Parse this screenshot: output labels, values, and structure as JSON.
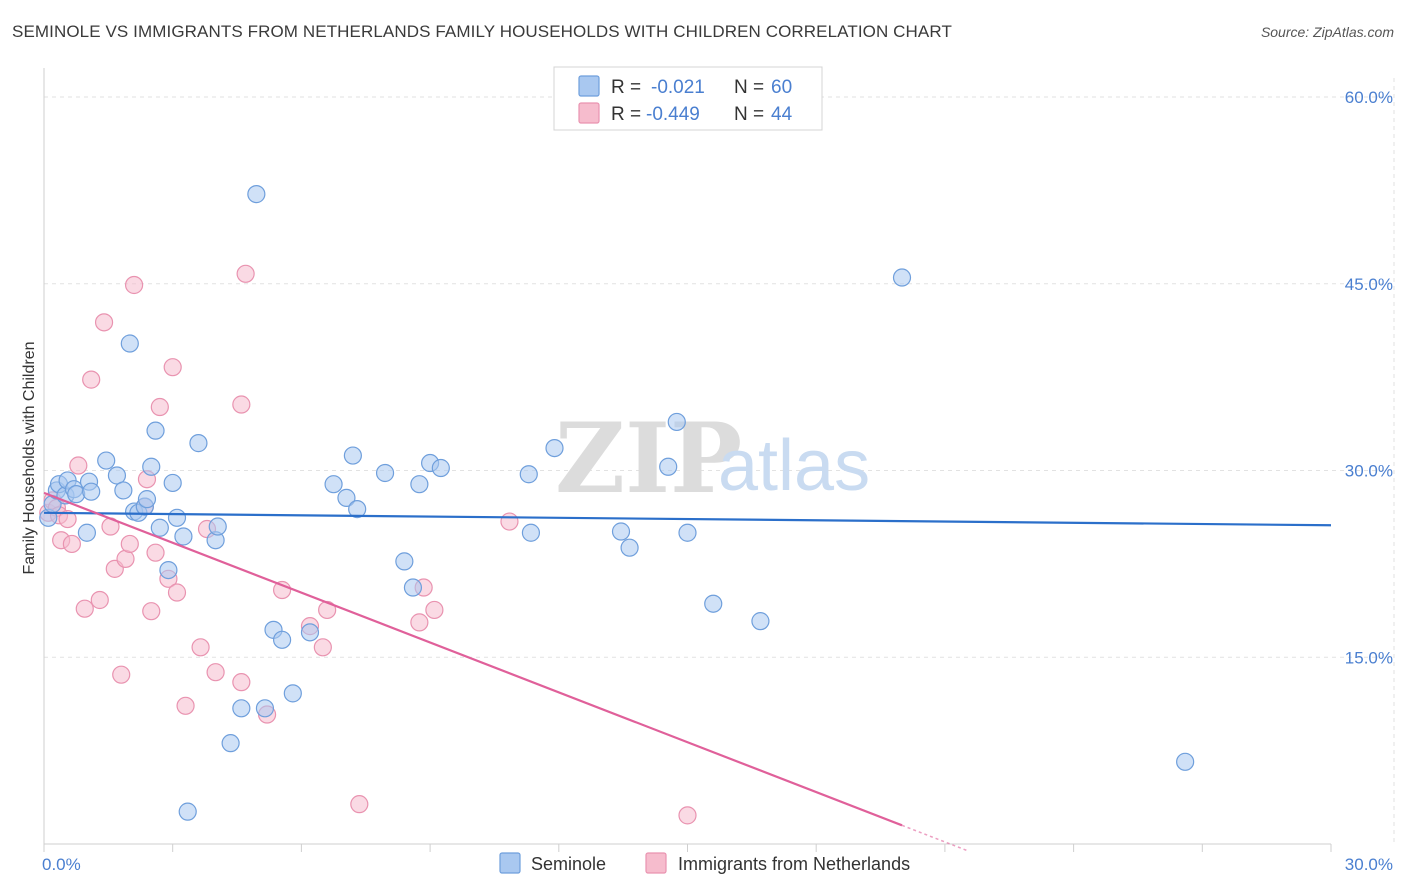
{
  "header": {
    "title": "SEMINOLE VS IMMIGRANTS FROM NETHERLANDS FAMILY HOUSEHOLDS WITH CHILDREN CORRELATION CHART",
    "source": "Source: ZipAtlas.com"
  },
  "watermark": {
    "zip": "ZIP",
    "atlas": "atlas"
  },
  "legend": {
    "r_label": "R =",
    "n_label": "N =",
    "rows": [
      {
        "name": "Seminole",
        "r": "-0.021",
        "n": "60"
      },
      {
        "name": "Immigrants from Netherlands",
        "r": "-0.449",
        "n": "44"
      }
    ]
  },
  "colors": {
    "seminole_fill": "#a9c8f0",
    "seminole_stroke": "#6f9fdc",
    "seminole_line": "#2b6fca",
    "neth_fill": "#f6bccd",
    "neth_stroke": "#e993b0",
    "neth_line": "#e0609a",
    "tick_text": "#4a7fd0"
  },
  "chart_data": {
    "type": "scatter",
    "title": "SEMINOLE VS IMMIGRANTS FROM NETHERLANDS FAMILY HOUSEHOLDS WITH CHILDREN CORRELATION CHART",
    "xlabel": "",
    "ylabel": "Family Households with Children",
    "xlim": [
      0,
      30
    ],
    "ylim": [
      0,
      60
    ],
    "x_tick_labels": [
      "0.0%",
      "30.0%"
    ],
    "y_ticks": [
      15,
      30,
      45,
      60
    ],
    "y_tick_labels": [
      "15.0%",
      "30.0%",
      "45.0%",
      "60.0%"
    ],
    "grid": true,
    "legend_position": "top-center",
    "series": [
      {
        "name": "Seminole",
        "r": -0.021,
        "n": 60,
        "trend": {
          "x0": 0,
          "y0": 26.6,
          "x1": 30,
          "y1": 25.6
        },
        "points": [
          [
            0.1,
            26.2
          ],
          [
            0.2,
            27.3
          ],
          [
            0.3,
            28.4
          ],
          [
            0.35,
            28.9
          ],
          [
            0.5,
            28.0
          ],
          [
            0.55,
            29.2
          ],
          [
            0.7,
            28.5
          ],
          [
            0.75,
            28.1
          ],
          [
            1.0,
            25.0
          ],
          [
            1.05,
            29.1
          ],
          [
            1.1,
            28.3
          ],
          [
            1.45,
            30.8
          ],
          [
            1.7,
            29.6
          ],
          [
            1.85,
            28.4
          ],
          [
            2.0,
            40.2
          ],
          [
            2.1,
            26.7
          ],
          [
            2.2,
            26.6
          ],
          [
            2.35,
            27.1
          ],
          [
            2.4,
            27.7
          ],
          [
            2.5,
            30.3
          ],
          [
            2.6,
            33.2
          ],
          [
            2.7,
            25.4
          ],
          [
            2.9,
            22.0
          ],
          [
            3.0,
            29.0
          ],
          [
            3.1,
            26.2
          ],
          [
            3.25,
            24.7
          ],
          [
            3.6,
            32.2
          ],
          [
            4.0,
            24.4
          ],
          [
            4.05,
            25.5
          ],
          [
            4.35,
            8.1
          ],
          [
            4.6,
            10.9
          ],
          [
            4.95,
            52.2
          ],
          [
            5.15,
            10.9
          ],
          [
            5.35,
            17.2
          ],
          [
            5.55,
            16.4
          ],
          [
            5.8,
            12.1
          ],
          [
            6.2,
            17.0
          ],
          [
            6.75,
            28.9
          ],
          [
            7.05,
            27.8
          ],
          [
            7.2,
            31.2
          ],
          [
            7.3,
            26.9
          ],
          [
            7.95,
            29.8
          ],
          [
            8.4,
            22.7
          ],
          [
            8.6,
            20.6
          ],
          [
            8.75,
            28.9
          ],
          [
            9.0,
            30.6
          ],
          [
            9.25,
            30.2
          ],
          [
            11.3,
            29.7
          ],
          [
            11.35,
            25.0
          ],
          [
            11.9,
            31.8
          ],
          [
            13.45,
            25.1
          ],
          [
            13.65,
            23.8
          ],
          [
            14.55,
            30.3
          ],
          [
            14.75,
            33.9
          ],
          [
            15.0,
            25.0
          ],
          [
            15.6,
            19.3
          ],
          [
            16.7,
            17.9
          ],
          [
            20.0,
            45.5
          ],
          [
            26.6,
            6.6
          ],
          [
            3.35,
            2.6
          ]
        ]
      },
      {
        "name": "Immigrants from Netherlands",
        "r": -0.449,
        "n": 44,
        "trend": {
          "x0": 0,
          "y0": 28.2,
          "x1": 20,
          "y1": 1.5,
          "dash_to_x": 21.5
        },
        "points": [
          [
            0.1,
            26.6
          ],
          [
            0.2,
            27.6
          ],
          [
            0.3,
            27.0
          ],
          [
            0.35,
            26.4
          ],
          [
            0.4,
            24.4
          ],
          [
            0.55,
            26.1
          ],
          [
            0.65,
            24.1
          ],
          [
            0.8,
            30.4
          ],
          [
            0.95,
            18.9
          ],
          [
            1.1,
            37.3
          ],
          [
            1.3,
            19.6
          ],
          [
            1.4,
            41.9
          ],
          [
            1.55,
            25.5
          ],
          [
            1.65,
            22.1
          ],
          [
            1.8,
            13.6
          ],
          [
            1.9,
            22.9
          ],
          [
            2.0,
            24.1
          ],
          [
            2.1,
            44.9
          ],
          [
            2.35,
            27.1
          ],
          [
            2.4,
            29.3
          ],
          [
            2.5,
            18.7
          ],
          [
            2.6,
            23.4
          ],
          [
            2.7,
            35.1
          ],
          [
            2.9,
            21.3
          ],
          [
            3.0,
            38.3
          ],
          [
            3.1,
            20.2
          ],
          [
            3.3,
            11.1
          ],
          [
            3.65,
            15.8
          ],
          [
            3.8,
            25.3
          ],
          [
            4.0,
            13.8
          ],
          [
            4.6,
            35.3
          ],
          [
            4.6,
            13.0
          ],
          [
            4.7,
            45.8
          ],
          [
            5.2,
            10.4
          ],
          [
            5.55,
            20.4
          ],
          [
            6.2,
            17.5
          ],
          [
            6.5,
            15.8
          ],
          [
            6.6,
            18.8
          ],
          [
            7.35,
            3.2
          ],
          [
            8.75,
            17.8
          ],
          [
            8.85,
            20.6
          ],
          [
            9.1,
            18.8
          ],
          [
            10.85,
            25.9
          ],
          [
            15.0,
            2.3
          ]
        ]
      }
    ]
  }
}
